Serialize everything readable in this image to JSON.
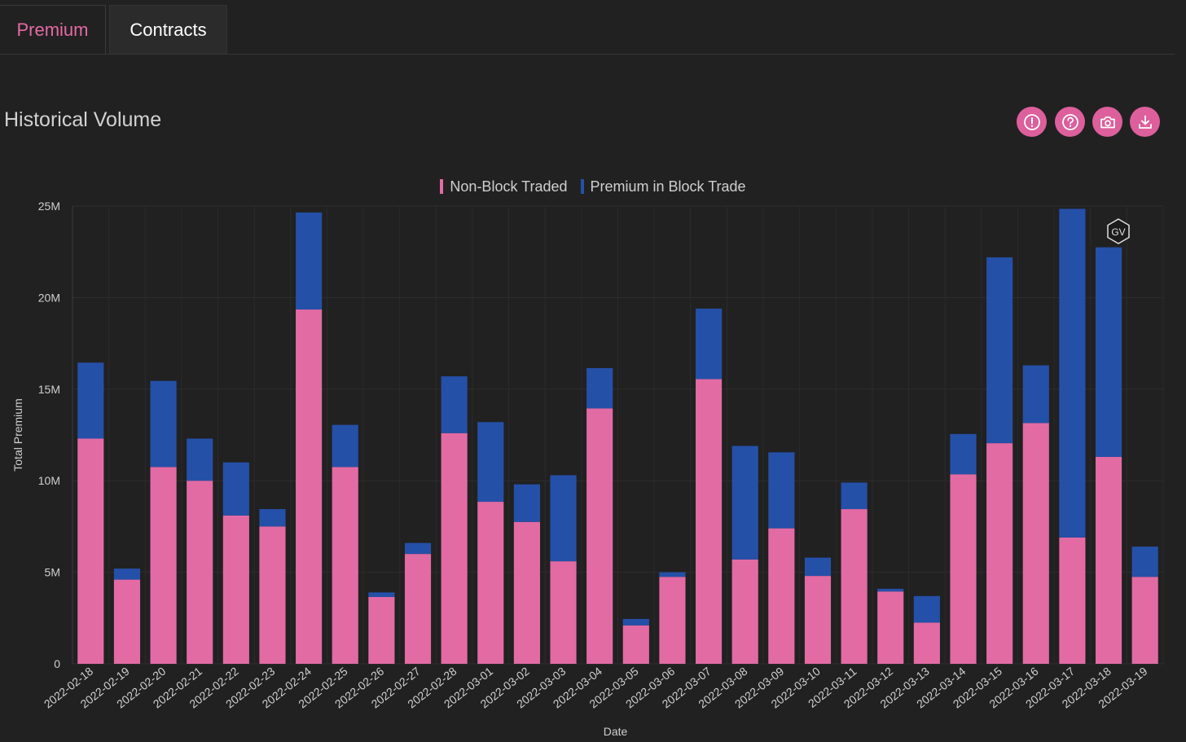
{
  "tabs": [
    {
      "label": "Premium",
      "active": true
    },
    {
      "label": "Contracts",
      "active": false
    }
  ],
  "title": "Historical Volume",
  "toolbar": [
    {
      "icon": "alert-icon"
    },
    {
      "icon": "help-icon"
    },
    {
      "icon": "camera-icon"
    },
    {
      "icon": "download-icon"
    }
  ],
  "badge_text": "GV",
  "colors": {
    "background": "#212121",
    "accent": "#dd5f9c",
    "non_block": "#e26ba4",
    "block": "#2550a8"
  },
  "chart_data": {
    "type": "bar",
    "stacked": true,
    "xlabel": "Date",
    "ylabel": "Total Premium",
    "ylim": [
      0,
      25000000
    ],
    "yticks": [
      {
        "value": 0,
        "label": "0"
      },
      {
        "value": 5000000,
        "label": "5M"
      },
      {
        "value": 10000000,
        "label": "10M"
      },
      {
        "value": 15000000,
        "label": "15M"
      },
      {
        "value": 20000000,
        "label": "20M"
      },
      {
        "value": 25000000,
        "label": "25M"
      }
    ],
    "legend_position": "top-center",
    "grid": true,
    "categories": [
      "2022-02-18",
      "2022-02-19",
      "2022-02-20",
      "2022-02-21",
      "2022-02-22",
      "2022-02-23",
      "2022-02-24",
      "2022-02-25",
      "2022-02-26",
      "2022-02-27",
      "2022-02-28",
      "2022-03-01",
      "2022-03-02",
      "2022-03-03",
      "2022-03-04",
      "2022-03-05",
      "2022-03-06",
      "2022-03-07",
      "2022-03-08",
      "2022-03-09",
      "2022-03-10",
      "2022-03-11",
      "2022-03-12",
      "2022-03-13",
      "2022-03-14",
      "2022-03-15",
      "2022-03-16",
      "2022-03-17",
      "2022-03-18",
      "2022-03-19"
    ],
    "series": [
      {
        "name": "Non-Block Traded",
        "color": "#e26ba4",
        "values": [
          12300000,
          4600000,
          10750000,
          10000000,
          8100000,
          7500000,
          19350000,
          10750000,
          3650000,
          6000000,
          12600000,
          8850000,
          7750000,
          5600000,
          13950000,
          2100000,
          4750000,
          15550000,
          5700000,
          7400000,
          4800000,
          8450000,
          3950000,
          2250000,
          10350000,
          12050000,
          13150000,
          6900000,
          11300000,
          4750000
        ]
      },
      {
        "name": "Premium in Block Trade",
        "color": "#2550a8",
        "values": [
          4150000,
          600000,
          4700000,
          2300000,
          2900000,
          950000,
          5300000,
          2300000,
          250000,
          600000,
          3100000,
          4350000,
          2050000,
          4700000,
          2200000,
          350000,
          250000,
          3850000,
          6200000,
          4150000,
          1000000,
          1450000,
          150000,
          1450000,
          2200000,
          10150000,
          3150000,
          17950000,
          11450000,
          1650000
        ]
      }
    ]
  }
}
